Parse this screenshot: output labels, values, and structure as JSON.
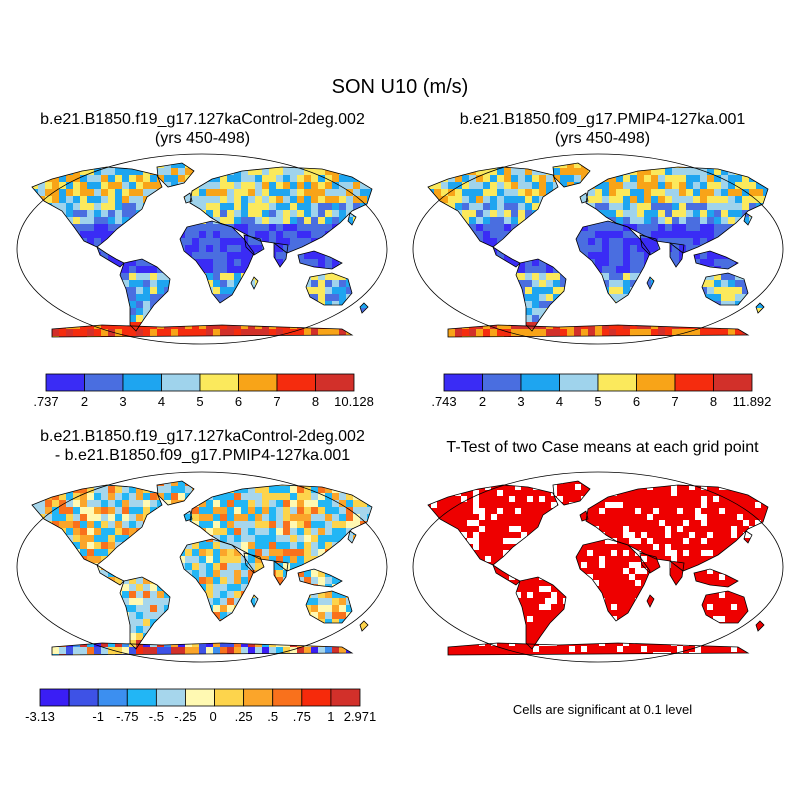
{
  "title": "SON U10 (m/s)",
  "panels": [
    {
      "id": "control",
      "title_line1": "b.e21.B1850.f19_g17.127kaControl-2deg.002",
      "title_line2": "(yrs 450-498)"
    },
    {
      "id": "pmip4",
      "title_line1": "b.e21.B1850.f09_g17.PMIP4-127ka.001",
      "title_line2": "(yrs 450-498)"
    },
    {
      "id": "difference",
      "title_line1": "b.e21.B1850.f19_g17.127kaControl-2deg.002",
      "title_line2": "- b.e21.B1850.f09_g17.PMIP4-127ka.001"
    },
    {
      "id": "ttest",
      "title_line1": "T-Test of two Case means at each grid point",
      "title_line2": ""
    }
  ],
  "colorbars": {
    "control": {
      "labels": [
        ".737",
        "2",
        "3",
        "4",
        "5",
        "6",
        "7",
        "8",
        "10.128"
      ],
      "colors": [
        "#3a2cf5",
        "#4a6ee0",
        "#1ea5f0",
        "#9fd3ec",
        "#fbe95c",
        "#f8a418",
        "#f52c0e",
        "#d2302a"
      ]
    },
    "pmip4": {
      "labels": [
        ".743",
        "2",
        "3",
        "4",
        "5",
        "6",
        "7",
        "8",
        "11.892"
      ],
      "colors": [
        "#3a2cf5",
        "#4a6ee0",
        "#1ea5f0",
        "#9fd3ec",
        "#fbe95c",
        "#f8a418",
        "#f52c0e",
        "#d2302a"
      ]
    },
    "difference": {
      "labels": [
        "-3.13",
        "",
        "-1",
        "-.75",
        "-.5",
        "-.25",
        "0",
        ".25",
        ".5",
        ".75",
        "1",
        "",
        "2.971"
      ],
      "colors": [
        "#3a1ef5",
        "#3e52e6",
        "#3c8ff0",
        "#22b6f5",
        "#a6d6ec",
        "#fff9b2",
        "#fdd44c",
        "#fba52a",
        "#f9711c",
        "#f62a0b",
        "#d2302a"
      ]
    }
  },
  "significance_note": "Cells are significant at 0.1 level",
  "colors": {
    "significant": "#ee0000",
    "frame": "#000000"
  }
}
